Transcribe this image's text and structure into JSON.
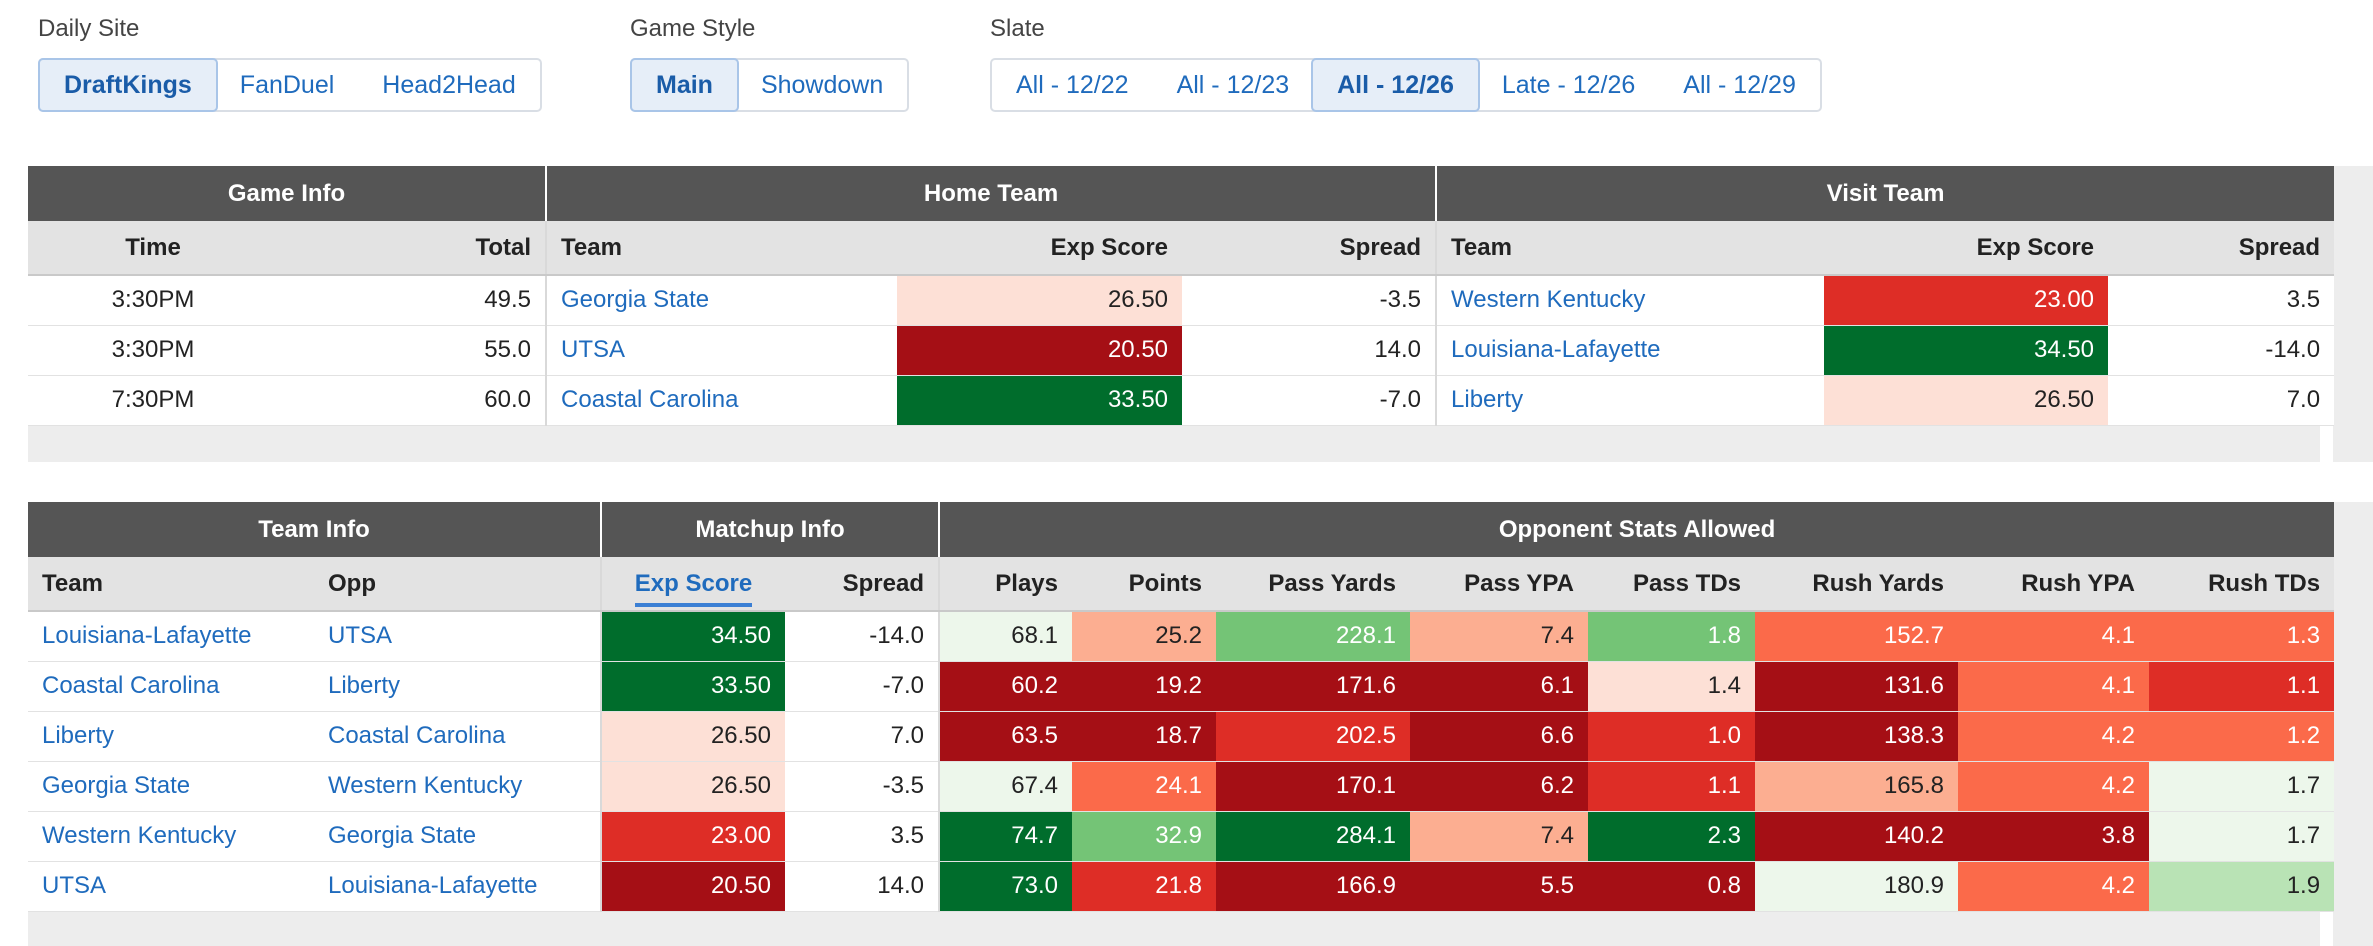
{
  "filters": {
    "daily_site": {
      "label": "Daily Site",
      "options": [
        "DraftKings",
        "FanDuel",
        "Head2Head"
      ],
      "selected": "DraftKings"
    },
    "game_style": {
      "label": "Game Style",
      "options": [
        "Main",
        "Showdown"
      ],
      "selected": "Main"
    },
    "slate": {
      "label": "Slate",
      "options": [
        "All - 12/22",
        "All - 12/23",
        "All - 12/26",
        "Late - 12/26",
        "All - 12/29"
      ],
      "selected": "All - 12/26"
    }
  },
  "games_table": {
    "groups": [
      "Game Info",
      "Home Team",
      "Visit Team"
    ],
    "headers": [
      "Time",
      "Total",
      "Team",
      "Exp Score",
      "Spread",
      "Team",
      "Exp Score",
      "Spread"
    ],
    "rows": [
      {
        "time": "3:30PM",
        "total": "49.5",
        "home_team": "Georgia State",
        "home_exp": "26.50",
        "home_spread": "-3.5",
        "visit_team": "Western Kentucky",
        "visit_exp": "23.00",
        "visit_spread": "3.5"
      },
      {
        "time": "3:30PM",
        "total": "55.0",
        "home_team": "UTSA",
        "home_exp": "20.50",
        "home_spread": "14.0",
        "visit_team": "Louisiana-Lafayette",
        "visit_exp": "34.50",
        "visit_spread": "-14.0"
      },
      {
        "time": "7:30PM",
        "total": "60.0",
        "home_team": "Coastal Carolina",
        "home_exp": "33.50",
        "home_spread": "-7.0",
        "visit_team": "Liberty",
        "visit_exp": "26.50",
        "visit_spread": "7.0"
      }
    ]
  },
  "teams_table": {
    "groups": [
      "Team Info",
      "Matchup Info",
      "Opponent Stats Allowed"
    ],
    "headers": [
      "Team",
      "Opp",
      "Exp Score",
      "Spread",
      "Plays",
      "Points",
      "Pass Yards",
      "Pass YPA",
      "Pass TDs",
      "Rush Yards",
      "Rush YPA",
      "Rush TDs"
    ],
    "sorted_column": "Exp Score",
    "rows": [
      {
        "team": "Louisiana-Lafayette",
        "opp": "UTSA",
        "exp": "34.50",
        "spread": "-14.0",
        "plays": "68.1",
        "points": "25.2",
        "pass_yards": "228.1",
        "pass_ypa": "7.4",
        "pass_tds": "1.8",
        "rush_yards": "152.7",
        "rush_ypa": "4.1",
        "rush_tds": "1.3"
      },
      {
        "team": "Coastal Carolina",
        "opp": "Liberty",
        "exp": "33.50",
        "spread": "-7.0",
        "plays": "60.2",
        "points": "19.2",
        "pass_yards": "171.6",
        "pass_ypa": "6.1",
        "pass_tds": "1.4",
        "rush_yards": "131.6",
        "rush_ypa": "4.1",
        "rush_tds": "1.1"
      },
      {
        "team": "Liberty",
        "opp": "Coastal Carolina",
        "exp": "26.50",
        "spread": "7.0",
        "plays": "63.5",
        "points": "18.7",
        "pass_yards": "202.5",
        "pass_ypa": "6.6",
        "pass_tds": "1.0",
        "rush_yards": "138.3",
        "rush_ypa": "4.2",
        "rush_tds": "1.2"
      },
      {
        "team": "Georgia State",
        "opp": "Western Kentucky",
        "exp": "26.50",
        "spread": "-3.5",
        "plays": "67.4",
        "points": "24.1",
        "pass_yards": "170.1",
        "pass_ypa": "6.2",
        "pass_tds": "1.1",
        "rush_yards": "165.8",
        "rush_ypa": "4.2",
        "rush_tds": "1.7"
      },
      {
        "team": "Western Kentucky",
        "opp": "Georgia State",
        "exp": "23.00",
        "spread": "3.5",
        "plays": "74.7",
        "points": "32.9",
        "pass_yards": "284.1",
        "pass_ypa": "7.4",
        "pass_tds": "2.3",
        "rush_yards": "140.2",
        "rush_ypa": "3.8",
        "rush_tds": "1.7"
      },
      {
        "team": "UTSA",
        "opp": "Louisiana-Lafayette",
        "exp": "20.50",
        "spread": "14.0",
        "plays": "73.0",
        "points": "21.8",
        "pass_yards": "166.9",
        "pass_ypa": "5.5",
        "pass_tds": "0.8",
        "rush_yards": "180.9",
        "rush_ypa": "4.2",
        "rush_tds": "1.9"
      }
    ]
  },
  "colors": {
    "link": "#1f6bbd",
    "group_header_bg": "#555555",
    "column_header_bg": "#e3e3e3",
    "heat_dark_green": "#006d2c",
    "heat_mid_green": "#74c476",
    "heat_light_green": "#b9e3b5",
    "heat_pale_green": "#edf7eb",
    "heat_pink": "#fde0d6",
    "heat_light_orange": "#fcae91",
    "heat_orange": "#fb6a4a",
    "heat_red": "#de2d26",
    "heat_dark_red": "#a50f15"
  }
}
